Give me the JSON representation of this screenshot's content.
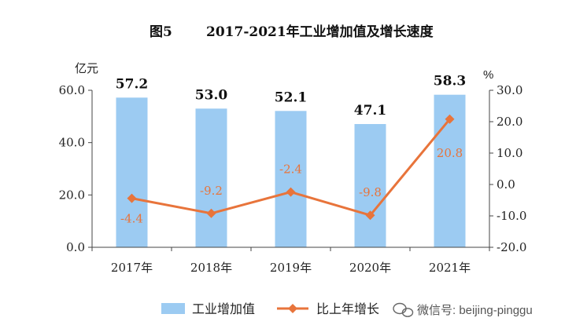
{
  "title": {
    "fig_no": "图5",
    "text": "2017-2021年工业增加值及增长速度"
  },
  "watermark": "微信号: beijing-pinggu",
  "chart_data": {
    "type": "bar+line",
    "categories": [
      "2017年",
      "2018年",
      "2019年",
      "2020年",
      "2021年"
    ],
    "left_axis": {
      "unit": "亿元",
      "ylim": [
        0,
        60
      ],
      "ticks": [
        "0.0",
        "20.0",
        "40.0",
        "60.0"
      ],
      "tick_values": [
        0,
        20,
        40,
        60
      ]
    },
    "right_axis": {
      "unit": "%",
      "ylim": [
        -20,
        30
      ],
      "ticks": [
        "-20.0",
        "-10.0",
        "0.0",
        "10.0",
        "20.0",
        "30.0"
      ],
      "tick_values": [
        -20,
        -10,
        0,
        10,
        20,
        30
      ]
    },
    "series": [
      {
        "name": "工业增加值",
        "type": "bar",
        "axis": "left",
        "color": "#9ccbf2",
        "values": [
          57.2,
          53.0,
          52.1,
          47.1,
          58.3
        ],
        "labels": [
          "57.2",
          "53.0",
          "52.1",
          "47.1",
          "58.3"
        ]
      },
      {
        "name": "比上年增长",
        "type": "line",
        "axis": "right",
        "color": "#e8743b",
        "values": [
          -4.4,
          -9.2,
          -2.4,
          -9.8,
          20.8
        ],
        "labels": [
          "-4.4",
          "-9.2",
          "-2.4",
          "-9.8",
          "20.8"
        ]
      }
    ],
    "grid": false,
    "legend": "bottom"
  }
}
